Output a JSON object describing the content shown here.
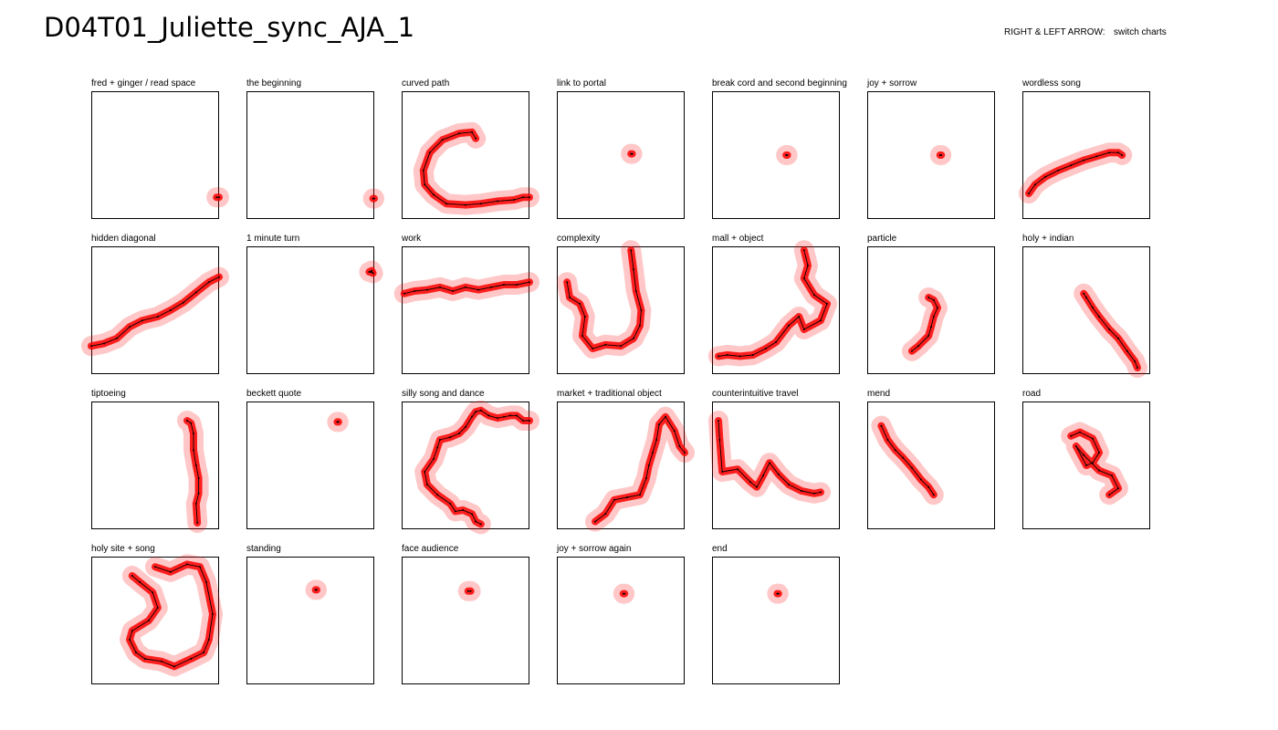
{
  "header": {
    "title": "D04T01_Juliette_sync_AJA_1",
    "hint_key": "RIGHT & LEFT ARROW:",
    "hint_action": "switch charts"
  },
  "colors": {
    "trail_glow": "#ff0000",
    "path_line": "#000000",
    "frame": "#000000"
  },
  "chart_data": [
    {
      "type": "scatter",
      "title": "fred + ginger / read space",
      "x": [
        0.98,
        1.0
      ],
      "y": [
        0.17,
        0.17
      ]
    },
    {
      "type": "scatter",
      "title": "the beginning",
      "x": [
        0.99,
        1.0
      ],
      "y": [
        0.16,
        0.16
      ]
    },
    {
      "type": "scatter",
      "title": "curved path",
      "x": [
        0.58,
        0.55,
        0.45,
        0.32,
        0.22,
        0.17,
        0.18,
        0.25,
        0.35,
        0.5,
        0.62,
        0.75,
        0.88,
        0.95,
        1.0
      ],
      "y": [
        0.63,
        0.68,
        0.67,
        0.62,
        0.52,
        0.38,
        0.27,
        0.19,
        0.12,
        0.11,
        0.12,
        0.14,
        0.15,
        0.17,
        0.17
      ]
    },
    {
      "type": "scatter",
      "title": "link to portal",
      "x": [
        0.58,
        0.59
      ],
      "y": [
        0.51,
        0.51
      ]
    },
    {
      "type": "scatter",
      "title": "break cord and second beginning",
      "x": [
        0.58,
        0.59
      ],
      "y": [
        0.5,
        0.5
      ]
    },
    {
      "type": "scatter",
      "title": "joy + sorrow",
      "x": [
        0.57,
        0.58
      ],
      "y": [
        0.5,
        0.5
      ]
    },
    {
      "type": "scatter",
      "title": "wordless song",
      "x": [
        0.05,
        0.1,
        0.18,
        0.28,
        0.38,
        0.48,
        0.58,
        0.68,
        0.75,
        0.78
      ],
      "y": [
        0.2,
        0.27,
        0.33,
        0.38,
        0.42,
        0.46,
        0.49,
        0.52,
        0.52,
        0.5
      ]
    },
    {
      "type": "scatter",
      "title": "hidden diagonal",
      "x": [
        0.0,
        0.1,
        0.2,
        0.3,
        0.4,
        0.52,
        0.62,
        0.72,
        0.82,
        0.92,
        1.0
      ],
      "y": [
        0.22,
        0.24,
        0.28,
        0.37,
        0.42,
        0.45,
        0.5,
        0.56,
        0.64,
        0.72,
        0.76
      ]
    },
    {
      "type": "scatter",
      "title": "1 minute turn",
      "x": [
        0.96,
        0.98,
        0.99,
        0.97
      ],
      "y": [
        0.8,
        0.81,
        0.79,
        0.8
      ]
    },
    {
      "type": "scatter",
      "title": "work",
      "x": [
        0.02,
        0.1,
        0.2,
        0.3,
        0.4,
        0.5,
        0.6,
        0.7,
        0.8,
        0.9,
        1.0
      ],
      "y": [
        0.63,
        0.65,
        0.66,
        0.68,
        0.65,
        0.68,
        0.66,
        0.68,
        0.7,
        0.7,
        0.72
      ]
    },
    {
      "type": "scatter",
      "title": "complexity",
      "x": [
        0.58,
        0.6,
        0.62,
        0.66,
        0.65,
        0.6,
        0.5,
        0.38,
        0.28,
        0.2,
        0.22,
        0.18,
        0.1,
        0.08
      ],
      "y": [
        0.97,
        0.82,
        0.65,
        0.5,
        0.38,
        0.28,
        0.22,
        0.23,
        0.2,
        0.3,
        0.45,
        0.55,
        0.6,
        0.72
      ]
    },
    {
      "type": "scatter",
      "title": "mall + object",
      "x": [
        0.72,
        0.75,
        0.72,
        0.8,
        0.9,
        0.85,
        0.72,
        0.68,
        0.6,
        0.5,
        0.42,
        0.32,
        0.22,
        0.12,
        0.05
      ],
      "y": [
        0.97,
        0.85,
        0.75,
        0.62,
        0.55,
        0.42,
        0.35,
        0.45,
        0.38,
        0.25,
        0.2,
        0.15,
        0.14,
        0.15,
        0.14
      ]
    },
    {
      "type": "scatter",
      "title": "particle",
      "x": [
        0.48,
        0.52,
        0.55,
        0.52,
        0.5,
        0.48,
        0.4,
        0.35
      ],
      "y": [
        0.6,
        0.58,
        0.52,
        0.45,
        0.37,
        0.3,
        0.22,
        0.18
      ]
    },
    {
      "type": "scatter",
      "title": "holy + indian",
      "x": [
        0.48,
        0.5,
        0.55,
        0.6,
        0.68,
        0.75,
        0.82,
        0.88,
        0.9
      ],
      "y": [
        0.63,
        0.6,
        0.52,
        0.45,
        0.35,
        0.28,
        0.18,
        0.1,
        0.05
      ]
    },
    {
      "type": "scatter",
      "title": "tiptoeing",
      "x": [
        0.75,
        0.78,
        0.8,
        0.8,
        0.82,
        0.84,
        0.84,
        0.82,
        0.83
      ],
      "y": [
        0.85,
        0.83,
        0.75,
        0.62,
        0.5,
        0.4,
        0.28,
        0.2,
        0.05
      ]
    },
    {
      "type": "scatter",
      "title": "beckett quote",
      "x": [
        0.71,
        0.72
      ],
      "y": [
        0.84,
        0.84
      ]
    },
    {
      "type": "scatter",
      "title": "silly song and dance",
      "x": [
        0.62,
        0.58,
        0.55,
        0.48,
        0.42,
        0.38,
        0.28,
        0.2,
        0.18,
        0.25,
        0.28,
        0.3,
        0.38,
        0.45,
        0.5,
        0.55,
        0.58,
        0.62,
        0.68,
        0.75,
        0.8,
        0.85,
        0.9,
        0.95,
        1.0
      ],
      "y": [
        0.04,
        0.06,
        0.12,
        0.15,
        0.14,
        0.2,
        0.27,
        0.35,
        0.45,
        0.55,
        0.64,
        0.7,
        0.72,
        0.75,
        0.8,
        0.88,
        0.92,
        0.93,
        0.89,
        0.87,
        0.88,
        0.89,
        0.89,
        0.85,
        0.85
      ]
    },
    {
      "type": "scatter",
      "title": "market + traditional object",
      "x": [
        0.3,
        0.38,
        0.45,
        0.55,
        0.65,
        0.7,
        0.72,
        0.75,
        0.78,
        0.8,
        0.85,
        0.92,
        0.96,
        1.0
      ],
      "y": [
        0.06,
        0.12,
        0.23,
        0.25,
        0.27,
        0.4,
        0.5,
        0.6,
        0.7,
        0.82,
        0.88,
        0.77,
        0.65,
        0.6
      ]
    },
    {
      "type": "scatter",
      "title": "counterintuitive travel",
      "x": [
        0.05,
        0.06,
        0.08,
        0.2,
        0.3,
        0.35,
        0.4,
        0.45,
        0.52,
        0.6,
        0.7,
        0.8,
        0.85
      ],
      "y": [
        0.85,
        0.7,
        0.45,
        0.47,
        0.37,
        0.33,
        0.42,
        0.52,
        0.43,
        0.35,
        0.3,
        0.28,
        0.29
      ]
    },
    {
      "type": "scatter",
      "title": "mend",
      "x": [
        0.11,
        0.16,
        0.22,
        0.28,
        0.35,
        0.42,
        0.48,
        0.52
      ],
      "y": [
        0.81,
        0.7,
        0.62,
        0.56,
        0.48,
        0.39,
        0.33,
        0.27
      ]
    },
    {
      "type": "scatter",
      "title": "road",
      "x": [
        0.38,
        0.45,
        0.55,
        0.6,
        0.55,
        0.5,
        0.42,
        0.48,
        0.6,
        0.7,
        0.75,
        0.68
      ],
      "y": [
        0.73,
        0.76,
        0.71,
        0.6,
        0.52,
        0.5,
        0.65,
        0.58,
        0.46,
        0.42,
        0.32,
        0.27
      ]
    },
    {
      "type": "scatter",
      "title": "holy site + song",
      "x": [
        0.5,
        0.62,
        0.75,
        0.85,
        0.9,
        0.95,
        0.92,
        0.88,
        0.78,
        0.65,
        0.55,
        0.42,
        0.35,
        0.3,
        0.32,
        0.45,
        0.52,
        0.48,
        0.38,
        0.32
      ],
      "y": [
        0.92,
        0.88,
        0.94,
        0.92,
        0.8,
        0.55,
        0.35,
        0.25,
        0.2,
        0.14,
        0.18,
        0.2,
        0.25,
        0.35,
        0.42,
        0.5,
        0.6,
        0.72,
        0.8,
        0.85
      ]
    },
    {
      "type": "scatter",
      "title": "standing",
      "x": [
        0.54,
        0.55
      ],
      "y": [
        0.74,
        0.74
      ]
    },
    {
      "type": "scatter",
      "title": "face audience",
      "x": [
        0.52,
        0.54
      ],
      "y": [
        0.73,
        0.73
      ]
    },
    {
      "type": "scatter",
      "title": "joy + sorrow again",
      "x": [
        0.52,
        0.53
      ],
      "y": [
        0.71,
        0.71
      ]
    },
    {
      "type": "scatter",
      "title": "end",
      "x": [
        0.51,
        0.52
      ],
      "y": [
        0.71,
        0.71
      ]
    }
  ]
}
